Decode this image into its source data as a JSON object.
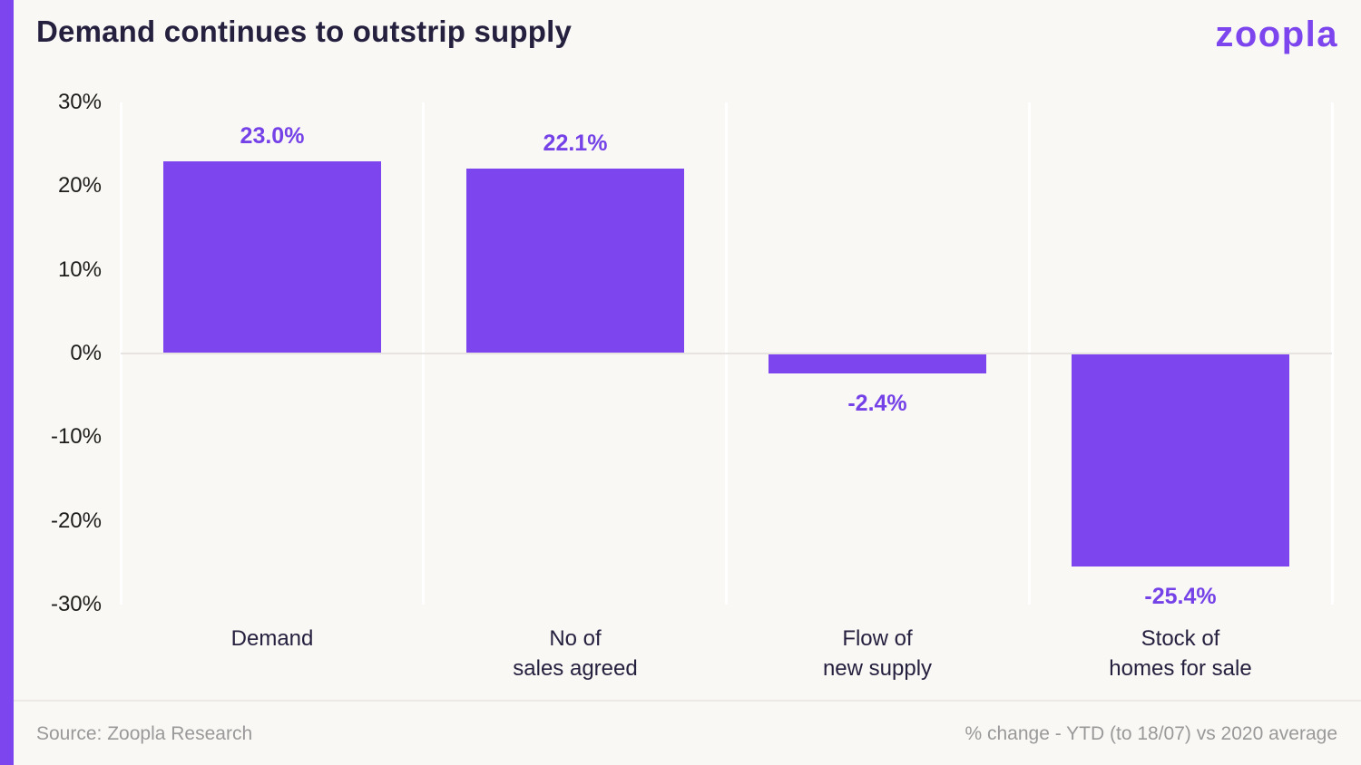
{
  "header": {
    "title": "Demand continues to outstrip supply",
    "logo_text": "zoopla"
  },
  "chart_data": {
    "type": "bar",
    "title": "Demand continues to outstrip supply",
    "categories": [
      "Demand",
      "No of sales agreed",
      "Flow of new supply",
      "Stock of homes for sale"
    ],
    "category_lines": [
      [
        "Demand"
      ],
      [
        "No of",
        "sales agreed"
      ],
      [
        "Flow of",
        "new supply"
      ],
      [
        "Stock of",
        "homes for sale"
      ]
    ],
    "values": [
      23.0,
      22.1,
      -2.4,
      -25.4
    ],
    "value_labels": [
      "23.0%",
      "22.1%",
      "-2.4%",
      "-25.4%"
    ],
    "xlabel": "",
    "ylabel": "",
    "ylim": [
      -30,
      30
    ],
    "y_ticks": [
      {
        "value": 30,
        "label": "30%"
      },
      {
        "value": 20,
        "label": "20%"
      },
      {
        "value": 10,
        "label": "10%"
      },
      {
        "value": 0,
        "label": "0%"
      },
      {
        "value": -10,
        "label": "-10%"
      },
      {
        "value": -20,
        "label": "-20%"
      },
      {
        "value": -30,
        "label": "-30%"
      }
    ],
    "grid": "vertical column dividers + zero baseline, no horizontal gridlines",
    "legend": "none",
    "bar_color": "#7C45EE",
    "value_label_color": "#7542E8"
  },
  "footer": {
    "source": "Source: Zoopla Research",
    "note": "% change - YTD (to 18/07) vs 2020 average"
  },
  "colors": {
    "accent": "#7C45EE",
    "background": "#F9F8F5",
    "title_text": "#26203F",
    "axis_text": "#1D1D1B",
    "muted_text": "#999999",
    "gridline": "#FFFFFF",
    "zero_line": "#E6E3E0"
  }
}
